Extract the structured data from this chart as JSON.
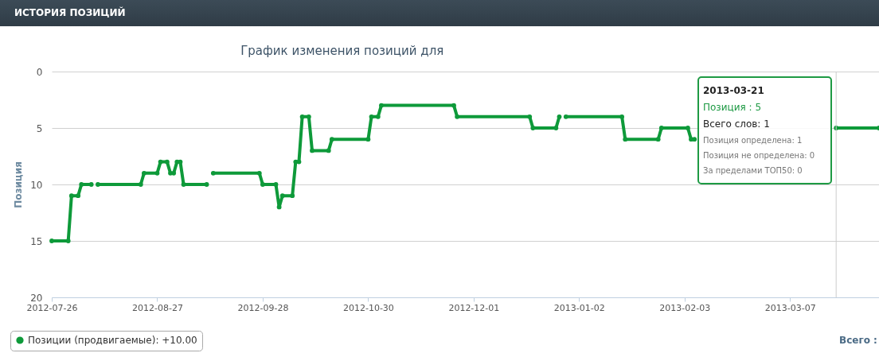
{
  "chart_data": {
    "type": "line",
    "title": "ИСТОРИЯ ПОЗИЦИЙ",
    "subtitle": "График изменения позиций для",
    "ylabel": "Позиция",
    "x": [
      "2012-07-26",
      "2012-07-31",
      "2012-08-01",
      "2012-08-03",
      "2012-08-04",
      "2012-08-07",
      "2012-08-08",
      "2012-08-09",
      "2012-08-22",
      "2012-08-23",
      "2012-08-27",
      "2012-08-28",
      "2012-08-30",
      "2012-08-31",
      "2012-09-01",
      "2012-09-02",
      "2012-09-03",
      "2012-09-04",
      "2012-09-11",
      "2012-09-12",
      "2012-09-13",
      "2012-09-27",
      "2012-09-28",
      "2012-10-02",
      "2012-10-03",
      "2012-10-04",
      "2012-10-07",
      "2012-10-08",
      "2012-10-09",
      "2012-10-10",
      "2012-10-12",
      "2012-10-13",
      "2012-10-18",
      "2012-10-19",
      "2012-10-30",
      "2012-10-31",
      "2012-11-02",
      "2012-11-03",
      "2012-11-25",
      "2012-11-26",
      "2012-12-18",
      "2012-12-19",
      "2012-12-26",
      "2012-12-27",
      "2012-12-28",
      "2012-12-29",
      "2013-01-15",
      "2013-01-16",
      "2013-01-26",
      "2013-01-27",
      "2013-02-04",
      "2013-02-05",
      "2013-02-06",
      "2013-02-26",
      "2013-03-21",
      "2013-04-03"
    ],
    "series": [
      {
        "name": "Позиции (продвигаемые): +10.00",
        "color": "#0e9a3a",
        "values": [
          15,
          15,
          11,
          11,
          10,
          10,
          null,
          10,
          10,
          9,
          9,
          8,
          8,
          9,
          9,
          8,
          8,
          10,
          10,
          null,
          9,
          9,
          10,
          10,
          12,
          11,
          11,
          8,
          8,
          4,
          4,
          7,
          7,
          6,
          6,
          4,
          4,
          3,
          3,
          4,
          4,
          5,
          5,
          4,
          null,
          4,
          4,
          6,
          6,
          5,
          5,
          6,
          6,
          null,
          5,
          5
        ]
      }
    ],
    "xlim": [
      "2012-07-26",
      "2013-04-03"
    ],
    "xticks": [
      "2012-07-26",
      "2012-08-27",
      "2012-09-28",
      "2012-10-30",
      "2012-12-01",
      "2013-01-02",
      "2013-02-03",
      "2013-03-07"
    ],
    "ylim": [
      20,
      0
    ],
    "yticks": [
      20,
      15,
      10,
      5,
      0
    ],
    "grid": "y",
    "legend": "bottom left",
    "marker": "circle",
    "line_style": "solid",
    "ref_lines": [
      {
        "axis": "x",
        "value": "2013-03-21",
        "color": "#cccccc"
      }
    ],
    "annotations": [
      "2013-03-21",
      "Позиция :  5",
      "Всего слов:  1",
      "Позиция определена: 1",
      "Позиция не определена: 0",
      "За пределами ТОП50: 0",
      "Всего :"
    ]
  }
}
